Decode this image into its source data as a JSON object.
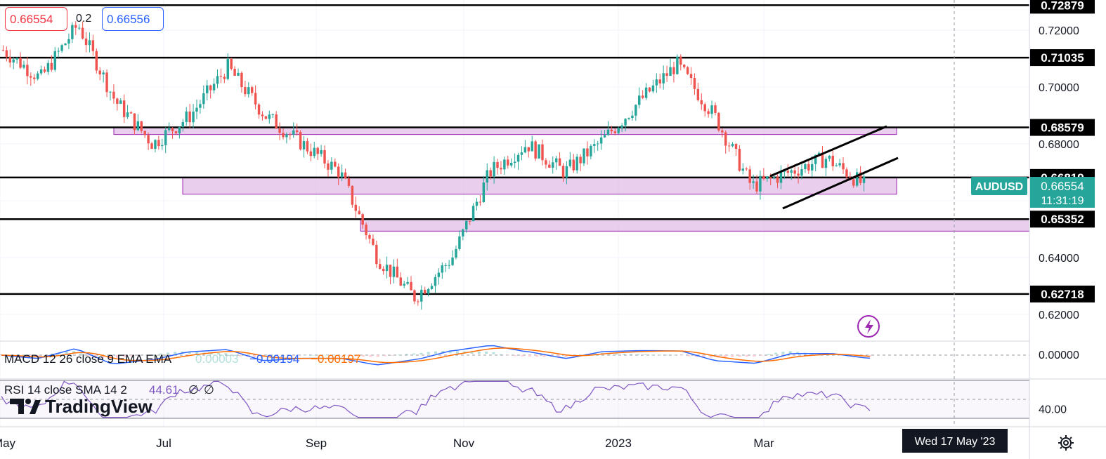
{
  "header": {
    "bid": "0.66554",
    "spread": "0.2",
    "ask": "0.66556"
  },
  "symbol": {
    "name": "AUDUSD",
    "price": "0.66554",
    "countdown": "11:31:19"
  },
  "cursor_date_label": "Wed 17 May '23",
  "logo_text": "TradingView",
  "colors": {
    "bull": "#26a69a",
    "bear": "#ef5350",
    "zone_fill": "#e1bee7",
    "zone_border": "#9c27b0",
    "macd_line": "#2962ff",
    "signal_line": "#ff6d00",
    "rsi_line": "#7e57c2",
    "symbol_tag": "#26a69a"
  },
  "chart_data": [
    {
      "type": "candlestick",
      "title": "AUDUSD",
      "timeframe": "daily",
      "x_ticks": [
        "May",
        "Jul",
        "Sep",
        "Nov",
        "2023",
        "Mar"
      ],
      "y_ticks": [
        "0.72000",
        "0.70000",
        "0.68000",
        "0.64000",
        "0.62000"
      ],
      "ylim": [
        0.612,
        0.731
      ],
      "grid": true,
      "horizontal_levels": [
        {
          "label": "0.72879",
          "value": 0.72879
        },
        {
          "label": "0.71035",
          "value": 0.71035
        },
        {
          "label": "0.68579",
          "value": 0.68579
        },
        {
          "label": "0.66819",
          "value": 0.66819
        },
        {
          "label": "0.65352",
          "value": 0.65352
        },
        {
          "label": "0.62718",
          "value": 0.62718
        }
      ],
      "zones": [
        {
          "from": "Jun-2022",
          "to": "Apr-2023",
          "low": 0.6833,
          "high": 0.6858
        },
        {
          "from": "Jul-2022",
          "to": "Apr-2023",
          "low": 0.6623,
          "high": 0.6683
        },
        {
          "from": "Sep-2022",
          "to": "May-2023",
          "low": 0.6493,
          "high": 0.6535
        }
      ],
      "channel": {
        "upper": [
          [
            "Feb-28-2023",
            0.667
          ],
          [
            "Apr-20-2023",
            0.6852
          ]
        ],
        "lower": [
          [
            "Mar-01-2023",
            0.6577
          ],
          [
            "Apr-22-2023",
            0.6755
          ]
        ]
      },
      "close_path": [
        [
          "May-2022",
          0.713
        ],
        [
          "mid-May-2022",
          0.703
        ],
        [
          "Jun-2022",
          0.722
        ],
        [
          "mid-Jun-2022",
          0.695
        ],
        [
          "Jul-2022",
          0.68
        ],
        [
          "mid-Jul-2022",
          0.69
        ],
        [
          "Aug-2022",
          0.707
        ],
        [
          "mid-Aug-2022",
          0.69
        ],
        [
          "Sep-2022",
          0.68
        ],
        [
          "mid-Sep-2022",
          0.67
        ],
        [
          "Oct-2022",
          0.64
        ],
        [
          "mid-Oct-2022",
          0.626
        ],
        [
          "Nov-2022",
          0.64
        ],
        [
          "mid-Nov-2022",
          0.67
        ],
        [
          "Dec-2022",
          0.68
        ],
        [
          "mid-Dec-2022",
          0.67
        ],
        [
          "Jan-2023",
          0.681
        ],
        [
          "mid-Jan-2023",
          0.695
        ],
        [
          "Feb-2023",
          0.708
        ],
        [
          "mid-Feb-2023",
          0.69
        ],
        [
          "Mar-2023",
          0.665
        ],
        [
          "mid-Mar-2023",
          0.67
        ],
        [
          "Apr-2023",
          0.675
        ],
        [
          "late-Apr-2023",
          0.6655
        ]
      ]
    },
    {
      "type": "line",
      "title": "MACD 12 26 close 9 EMA EMA",
      "values_shown": [
        "0.00003",
        "−0.00194",
        "−0.00197"
      ],
      "y_ticks": [
        "0.00000"
      ],
      "series": [
        {
          "name": "MACD",
          "color": "#2962ff"
        },
        {
          "name": "Signal",
          "color": "#ff6d00"
        }
      ]
    },
    {
      "type": "line",
      "title": "RSI 14 close SMA 14 2",
      "values_shown": [
        "44.61",
        "∅",
        "∅"
      ],
      "y_ticks": [
        "40.00"
      ],
      "range": [
        0,
        100
      ],
      "bands": [
        30,
        50,
        70
      ]
    }
  ]
}
